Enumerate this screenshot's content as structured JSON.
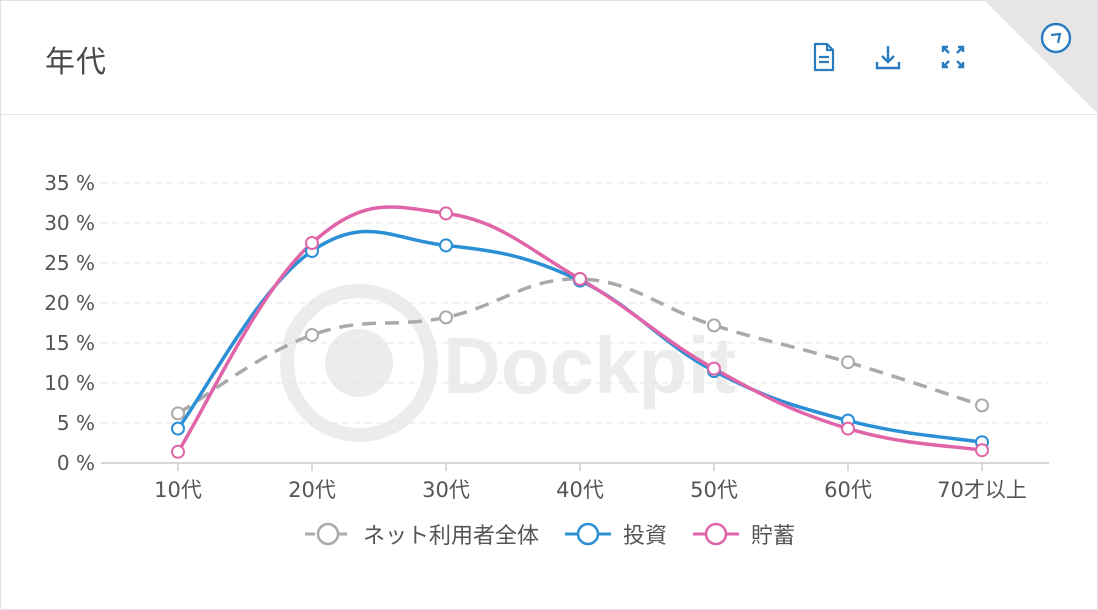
{
  "header": {
    "title": "年代"
  },
  "toolbar": [
    {
      "name": "document-icon",
      "color": "#2b7bbf"
    },
    {
      "name": "download-icon",
      "color": "#2b7bbf"
    },
    {
      "name": "fullscreen-icon",
      "color": "#2b7bbf"
    }
  ],
  "corner": {
    "icon": "compass-icon",
    "color": "#2b7bbf"
  },
  "watermark": {
    "text": "Dockpit"
  },
  "chart_data": {
    "type": "line",
    "categories": [
      "10代",
      "20代",
      "30代",
      "40代",
      "50代",
      "60代",
      "70才以上"
    ],
    "y_ticks": [
      "0 %",
      "5 %",
      "10 %",
      "15 %",
      "20 %",
      "25 %",
      "30 %",
      "35 %"
    ],
    "ylim": [
      0,
      35
    ],
    "grid": true,
    "legend_position": "bottom",
    "series": [
      {
        "name": "ネット利用者全体",
        "color": "#aaaaaa",
        "dashed": true,
        "values": [
          6.2,
          16.0,
          18.2,
          23.0,
          17.2,
          12.6,
          7.2
        ]
      },
      {
        "name": "投資",
        "color": "#2b8fd6",
        "dashed": false,
        "values": [
          4.3,
          26.5,
          27.2,
          22.8,
          11.5,
          5.3,
          2.6
        ]
      },
      {
        "name": "貯蓄",
        "color": "#e064a8",
        "dashed": false,
        "values": [
          1.4,
          27.5,
          31.2,
          23.0,
          11.8,
          4.3,
          1.6
        ]
      }
    ]
  }
}
